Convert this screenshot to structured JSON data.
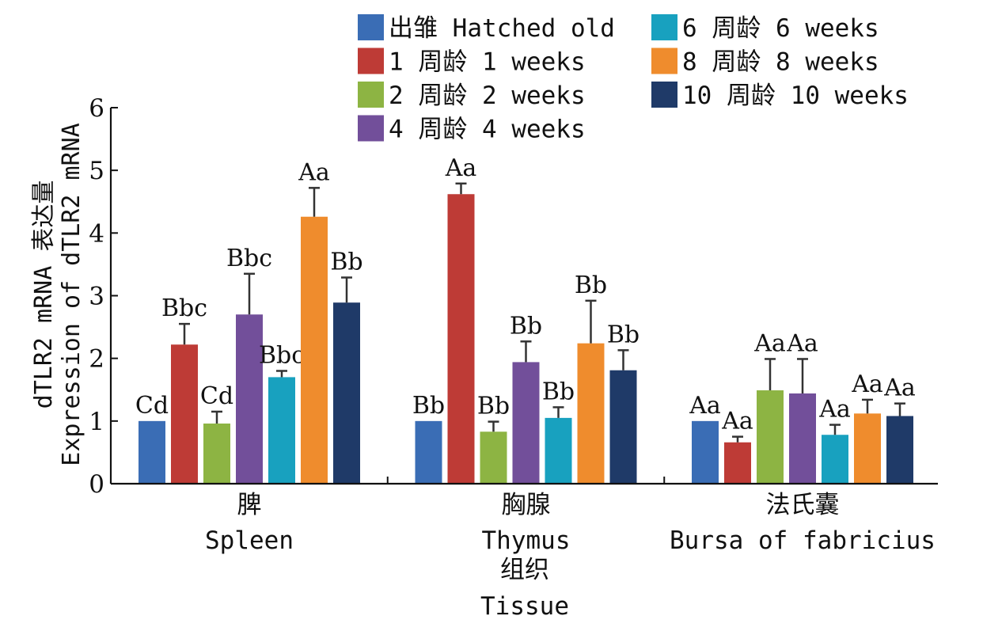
{
  "chart_data": {
    "type": "bar",
    "ylabel_cn": "dTLR2 mRNA 表达量",
    "ylabel_en": "Expression of dTLR2 mRNA",
    "xlabel_cn": "组织",
    "xlabel_en": "Tissue",
    "ylim": [
      0,
      6
    ],
    "yticks": [
      0,
      1,
      2,
      3,
      4,
      5,
      6
    ],
    "legend_position": "top-right",
    "groups": [
      {
        "label_cn": "脾",
        "label_en": "Spleen"
      },
      {
        "label_cn": "胸腺",
        "label_en": "Thymus"
      },
      {
        "label_cn": "法氏囊",
        "label_en": "Bursa of fabricius"
      }
    ],
    "series": [
      {
        "name": "出雏 Hatched old",
        "color": "#3a6db5",
        "values": [
          1.0,
          1.0,
          1.0
        ],
        "errors": [
          0,
          0,
          0
        ],
        "sig": [
          "Cd",
          "Bb",
          "Aa"
        ]
      },
      {
        "name": "1 周龄 1 weeks",
        "color": "#be3b36",
        "values": [
          2.22,
          4.62,
          0.66
        ],
        "errors": [
          0.33,
          0.17,
          0.09
        ],
        "sig": [
          "Bbc",
          "Aa",
          "Aa"
        ]
      },
      {
        "name": "2 周龄 2 weeks",
        "color": "#8db443",
        "values": [
          0.96,
          0.83,
          1.49
        ],
        "errors": [
          0.19,
          0.16,
          0.5
        ],
        "sig": [
          "Cd",
          "Bb",
          "Aa"
        ]
      },
      {
        "name": "4 周龄 4 weeks",
        "color": "#724f9a",
        "values": [
          2.7,
          1.94,
          1.44
        ],
        "errors": [
          0.65,
          0.33,
          0.55
        ],
        "sig": [
          "Bbc",
          "Bb",
          "Aa"
        ]
      },
      {
        "name": "6 周龄 6 weeks",
        "color": "#18a1bf",
        "values": [
          1.7,
          1.05,
          0.78
        ],
        "errors": [
          0.1,
          0.17,
          0.16
        ],
        "sig": [
          "Bbc",
          "Bb",
          "Aa"
        ]
      },
      {
        "name": "8 周龄 8 weeks",
        "color": "#ef8c2d",
        "values": [
          4.26,
          2.24,
          1.12
        ],
        "errors": [
          0.46,
          0.68,
          0.22
        ],
        "sig": [
          "Aa",
          "Bb",
          "Aa"
        ]
      },
      {
        "name": "10 周龄 10 weeks",
        "color": "#1f3a68",
        "values": [
          2.89,
          1.81,
          1.08
        ],
        "errors": [
          0.4,
          0.32,
          0.2
        ],
        "sig": [
          "Bb",
          "Bb",
          "Aa"
        ]
      }
    ]
  }
}
